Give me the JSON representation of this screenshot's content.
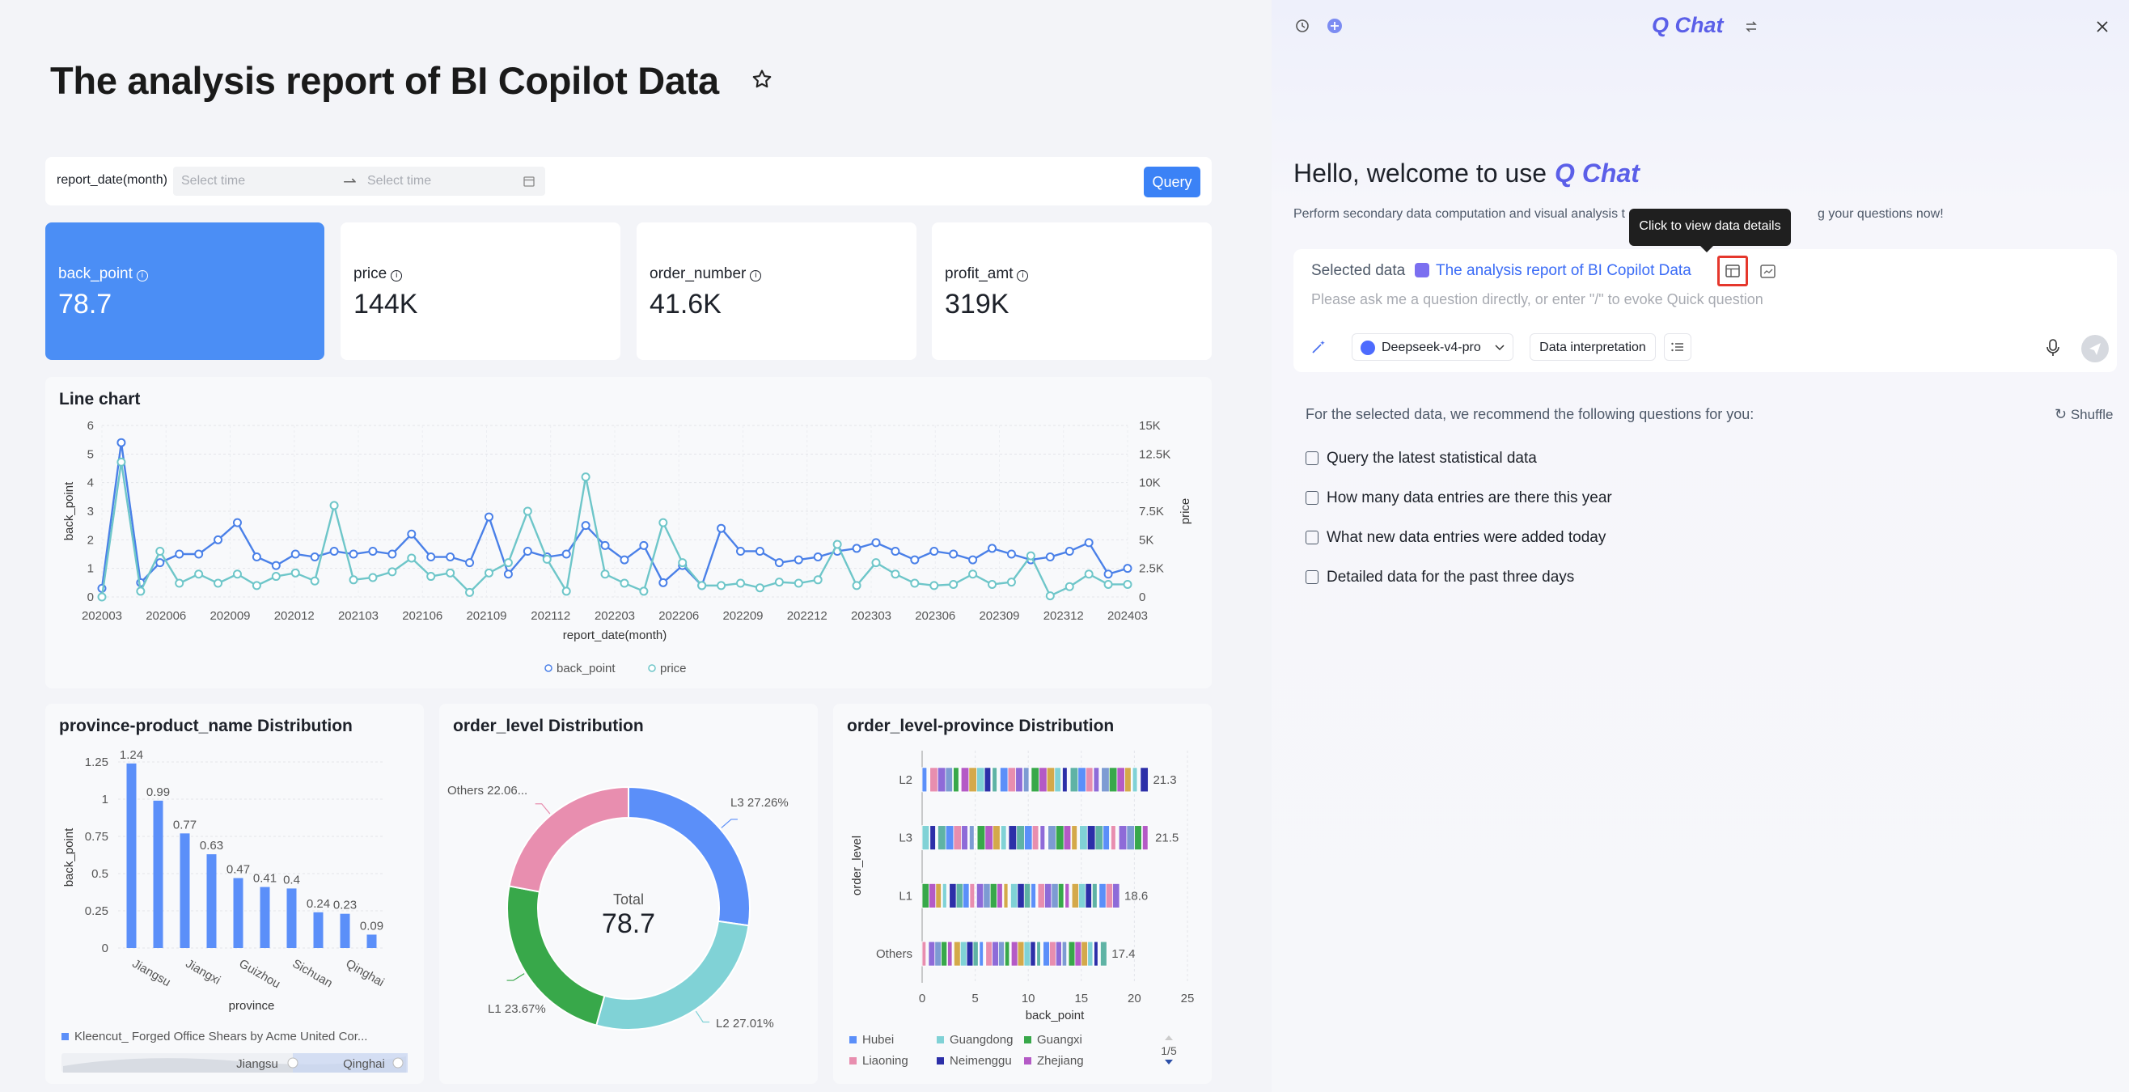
{
  "report": {
    "title": "The analysis report of BI Copilot Data",
    "filter": {
      "label": "report_date(month)",
      "start_placeholder": "Select time",
      "end_placeholder": "Select time",
      "query_label": "Query"
    },
    "kpis": [
      {
        "label": "back_point",
        "value": "78.7",
        "active": true
      },
      {
        "label": "price",
        "value": "144K",
        "active": false
      },
      {
        "label": "order_number",
        "value": "41.6K",
        "active": false
      },
      {
        "label": "profit_amt",
        "value": "319K",
        "active": false
      }
    ]
  },
  "colors": {
    "accent": "#3b82f6",
    "back_point": "#4a80e8",
    "price": "#6ec6c9",
    "brand": "#5b5fe8",
    "highlight": "#e5372c"
  },
  "chart_data": [
    {
      "type": "line",
      "title": "Line chart",
      "xlabel": "report_date(month)",
      "ylabel": "back_point",
      "ylabel_right": "price",
      "x_tick_labels": [
        "202003",
        "202006",
        "202009",
        "202012",
        "202103",
        "202106",
        "202109",
        "202112",
        "202203",
        "202206",
        "202209",
        "202212",
        "202303",
        "202306",
        "202309",
        "202312",
        "202403"
      ],
      "ylim": [
        0,
        6
      ],
      "y_ticks": [
        "0",
        "1",
        "2",
        "3",
        "4",
        "5",
        "6"
      ],
      "ylim_right": [
        0,
        15000
      ],
      "y_ticks_right": [
        "0",
        "2.5K",
        "5K",
        "7.5K",
        "10K",
        "12.5K",
        "15K"
      ],
      "legend": [
        "back_point",
        "price"
      ],
      "legend_position": "bottom",
      "series": [
        {
          "name": "back_point",
          "axis": "left",
          "values": [
            0.3,
            5.4,
            0.5,
            1.2,
            1.5,
            1.5,
            2,
            2.6,
            1.4,
            1.1,
            1.5,
            1.4,
            1.6,
            1.5,
            1.6,
            1.5,
            2.2,
            1.4,
            1.4,
            1.2,
            2.8,
            0.8,
            1.6,
            1.4,
            1.5,
            2.5,
            1.8,
            1.3,
            1.8,
            0.5,
            1.1,
            0.4,
            2.4,
            1.6,
            1.6,
            1.2,
            1.3,
            1.4,
            1.6,
            1.7,
            1.9,
            1.6,
            1.3,
            1.6,
            1.5,
            1.3,
            1.7,
            1.5,
            1.3,
            1.4,
            1.6,
            1.9,
            0.8,
            1.0
          ]
        },
        {
          "name": "price",
          "axis": "right",
          "values": [
            0,
            11800,
            500,
            4000,
            1200,
            2000,
            1200,
            2000,
            1000,
            1800,
            2100,
            1400,
            8000,
            1500,
            1700,
            2200,
            3400,
            1800,
            2100,
            400,
            2100,
            3000,
            7500,
            3300,
            500,
            10500,
            2000,
            1200,
            500,
            6500,
            3000,
            1000,
            1000,
            1200,
            800,
            1300,
            1200,
            1500,
            4600,
            1000,
            3000,
            2000,
            1200,
            1000,
            1100,
            2000,
            1100,
            1300,
            3600,
            100,
            900,
            2000,
            1100,
            1100
          ]
        }
      ]
    },
    {
      "type": "bar",
      "title": "province-product_name Distribution",
      "xlabel": "province",
      "ylabel": "back_point",
      "ylim": [
        0,
        1.25
      ],
      "y_ticks": [
        "0",
        "0.25",
        "0.5",
        "0.75",
        "1",
        "1.25"
      ],
      "x_tick_labels": [
        "Jiangsu",
        "Jiangxi",
        "Guizhou",
        "Sichuan",
        "Qinghai"
      ],
      "values": [
        1.24,
        0.99,
        0.77,
        0.63,
        0.47,
        0.41,
        0.4,
        0.24,
        0.23,
        0.09
      ],
      "value_labels": [
        "1.24",
        "0.99",
        "0.77",
        "0.63",
        "0.47",
        "0.41",
        "0.4",
        "0.24",
        "0.23",
        "0.09"
      ],
      "legend": [
        "Kleencut_ Forged Office Shears by Acme United Cor..."
      ],
      "slider": {
        "start_label": "Jiangsu",
        "end_label": "Qinghai"
      }
    },
    {
      "type": "pie",
      "title": "order_level Distribution",
      "center_label": "Total",
      "center_value": "78.7",
      "slices": [
        {
          "label": "L3 27.26%",
          "value": 27.26,
          "color": "#5b8ff9"
        },
        {
          "label": "L2 27.01%",
          "value": 27.01,
          "color": "#80d2d6"
        },
        {
          "label": "L1 23.67%",
          "value": 23.67,
          "color": "#38a84a"
        },
        {
          "label": "Others 22.06...",
          "value": 22.06,
          "color": "#e88eaf"
        }
      ]
    },
    {
      "type": "bar",
      "orientation": "horizontal",
      "stacked": true,
      "title": "order_level-province Distribution",
      "xlabel": "back_point",
      "ylabel": "order_level",
      "xlim": [
        0,
        25
      ],
      "x_ticks": [
        "0",
        "5",
        "10",
        "15",
        "20",
        "25"
      ],
      "categories": [
        "L2",
        "L3",
        "L1",
        "Others"
      ],
      "totals": [
        21.3,
        21.5,
        18.6,
        17.4
      ],
      "total_labels": [
        "21.3",
        "21.5",
        "18.6",
        "17.4"
      ],
      "legend": [
        {
          "name": "Hubei",
          "color": "#5b8ff9"
        },
        {
          "name": "Guangdong",
          "color": "#80d2d6"
        },
        {
          "name": "Guangxi",
          "color": "#38a84a"
        },
        {
          "name": "Liaoning",
          "color": "#e88eaf"
        },
        {
          "name": "Neimenggu",
          "color": "#2c2fa8"
        },
        {
          "name": "Zhejiang",
          "color": "#b45ac6"
        }
      ],
      "legend_page": "1/5"
    }
  ],
  "chat": {
    "logo": "Q Chat",
    "greeting": "Hello, welcome to use",
    "subtitle": "Perform secondary data computation and visual analysis t",
    "subtitle_tail": "g your questions now!",
    "tooltip": "Click to view data details",
    "selected_label": "Selected data",
    "selected_name": "The analysis report of BI Copilot Data",
    "placeholder": "Please ask me a question directly, or enter \"/\" to evoke Quick question",
    "model": "Deepseek-v4-pro",
    "mode": "Data interpretation",
    "recommend_label": "For the selected data, we recommend the following questions for you:",
    "shuffle": "Shuffle",
    "questions": [
      "Query the latest statistical data",
      "How many data entries are there this year",
      "What new data entries were added today",
      "Detailed data for the past three days"
    ]
  }
}
